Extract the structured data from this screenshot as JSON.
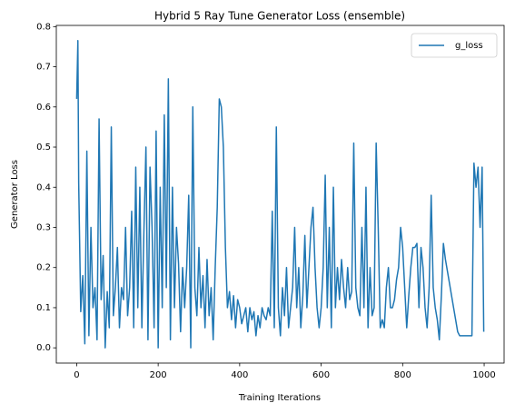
{
  "chart_data": {
    "type": "line",
    "title": "Hybrid 5 Ray Tune Generator Loss (ensemble)",
    "x_label": "Training Iterations",
    "y_label": "Generator Loss",
    "legend": "upper right",
    "x": [
      0,
      3,
      5,
      10,
      15,
      20,
      25,
      30,
      35,
      40,
      45,
      50,
      55,
      60,
      65,
      70,
      75,
      80,
      85,
      90,
      95,
      100,
      105,
      110,
      115,
      120,
      125,
      130,
      135,
      140,
      145,
      150,
      155,
      160,
      165,
      170,
      175,
      180,
      185,
      190,
      195,
      200,
      205,
      210,
      215,
      220,
      225,
      230,
      235,
      240,
      245,
      250,
      255,
      260,
      265,
      270,
      275,
      280,
      285,
      290,
      295,
      300,
      305,
      310,
      315,
      320,
      325,
      330,
      335,
      340,
      345,
      350,
      355,
      360,
      365,
      370,
      375,
      380,
      385,
      390,
      395,
      400,
      405,
      410,
      415,
      420,
      425,
      430,
      435,
      440,
      445,
      450,
      455,
      460,
      465,
      470,
      475,
      480,
      485,
      490,
      495,
      500,
      505,
      510,
      515,
      520,
      525,
      530,
      535,
      540,
      545,
      550,
      555,
      560,
      565,
      570,
      575,
      580,
      585,
      590,
      595,
      600,
      605,
      610,
      615,
      620,
      625,
      630,
      635,
      640,
      645,
      650,
      655,
      660,
      665,
      670,
      675,
      680,
      685,
      690,
      695,
      700,
      705,
      710,
      715,
      720,
      725,
      730,
      735,
      740,
      745,
      750,
      755,
      760,
      765,
      770,
      775,
      780,
      785,
      790,
      795,
      800,
      805,
      810,
      815,
      820,
      825,
      830,
      835,
      840,
      845,
      850,
      855,
      860,
      865,
      870,
      875,
      880,
      885,
      890,
      895,
      900,
      905,
      910,
      915,
      920,
      925,
      930,
      935,
      940,
      945,
      950,
      955,
      960,
      965,
      970,
      975,
      980,
      985,
      990,
      995,
      999
    ],
    "series": [
      {
        "name": "g_loss",
        "color": "#1f77b4",
        "values": [
          0.62,
          0.765,
          0.41,
          0.09,
          0.18,
          0.01,
          0.49,
          0.03,
          0.3,
          0.1,
          0.15,
          0.02,
          0.57,
          0.12,
          0.23,
          0.0,
          0.14,
          0.05,
          0.55,
          0.08,
          0.15,
          0.25,
          0.05,
          0.15,
          0.12,
          0.3,
          0.08,
          0.15,
          0.34,
          0.05,
          0.45,
          0.1,
          0.4,
          0.05,
          0.29,
          0.5,
          0.02,
          0.45,
          0.3,
          0.05,
          0.54,
          0.0,
          0.4,
          0.1,
          0.58,
          0.15,
          0.67,
          0.02,
          0.4,
          0.1,
          0.3,
          0.21,
          0.04,
          0.2,
          0.1,
          0.2,
          0.38,
          0.0,
          0.6,
          0.15,
          0.08,
          0.25,
          0.1,
          0.18,
          0.05,
          0.22,
          0.08,
          0.15,
          0.02,
          0.2,
          0.35,
          0.62,
          0.6,
          0.5,
          0.25,
          0.1,
          0.14,
          0.07,
          0.13,
          0.05,
          0.12,
          0.1,
          0.06,
          0.08,
          0.1,
          0.04,
          0.1,
          0.07,
          0.09,
          0.03,
          0.08,
          0.05,
          0.1,
          0.08,
          0.07,
          0.1,
          0.08,
          0.34,
          0.05,
          0.55,
          0.1,
          0.03,
          0.15,
          0.08,
          0.2,
          0.05,
          0.1,
          0.15,
          0.3,
          0.1,
          0.2,
          0.05,
          0.13,
          0.28,
          0.1,
          0.2,
          0.3,
          0.35,
          0.2,
          0.1,
          0.05,
          0.1,
          0.2,
          0.43,
          0.1,
          0.3,
          0.05,
          0.4,
          0.1,
          0.2,
          0.12,
          0.22,
          0.15,
          0.1,
          0.2,
          0.12,
          0.14,
          0.51,
          0.15,
          0.1,
          0.08,
          0.3,
          0.1,
          0.4,
          0.05,
          0.2,
          0.08,
          0.1,
          0.51,
          0.3,
          0.05,
          0.07,
          0.05,
          0.15,
          0.2,
          0.1,
          0.1,
          0.12,
          0.17,
          0.2,
          0.3,
          0.25,
          0.15,
          0.05,
          0.13,
          0.2,
          0.25,
          0.25,
          0.26,
          0.1,
          0.25,
          0.2,
          0.1,
          0.05,
          0.15,
          0.38,
          0.15,
          0.1,
          0.07,
          0.02,
          0.13,
          0.26,
          0.22,
          0.19,
          0.16,
          0.13,
          0.1,
          0.07,
          0.04,
          0.03,
          0.03,
          0.03,
          0.03,
          0.03,
          0.03,
          0.03,
          0.46,
          0.4,
          0.45,
          0.3,
          0.45,
          0.04
        ]
      }
    ],
    "xlim": [
      -49.95,
      1048.95
    ],
    "xticks": [
      0,
      200,
      400,
      600,
      800,
      1000
    ],
    "ylim": [
      -0.038,
      0.803
    ],
    "yticks": [
      {
        "value": 0,
        "label": "0.0"
      },
      0.1,
      0.2,
      0.3,
      0.4,
      0.5,
      0.6,
      0.7,
      0.8
    ]
  }
}
